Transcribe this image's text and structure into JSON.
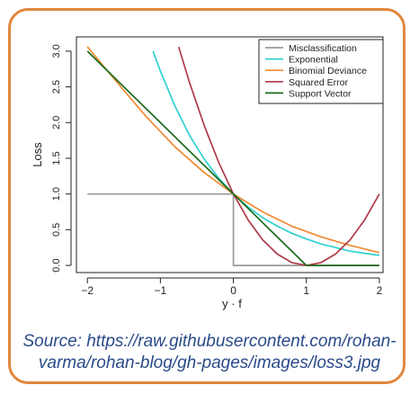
{
  "chart_data": {
    "type": "line",
    "xlabel": "y · f",
    "ylabel": "Loss",
    "xlim": [
      -2.15,
      2.05
    ],
    "ylim": [
      -0.1,
      3.2
    ],
    "xticks": [
      -2,
      -1,
      0,
      1,
      2
    ],
    "xtick_labels": [
      "−2",
      "−1",
      "0",
      "1",
      "2"
    ],
    "yticks": [
      0.0,
      0.5,
      1.0,
      1.5,
      2.0,
      2.5,
      3.0
    ],
    "ytick_labels": [
      "0.0",
      "0.5",
      "1.0",
      "1.5",
      "2.0",
      "2.5",
      "3.0"
    ],
    "grid": false,
    "legend_position": "top-right",
    "series": [
      {
        "name": "Misclassification",
        "color": "#999999",
        "x": [
          -2,
          0,
          0,
          0.001,
          2
        ],
        "y": [
          1,
          1,
          1,
          0,
          0
        ]
      },
      {
        "name": "Exponential",
        "color": "#30d0d0",
        "x": [
          -1.1,
          -1.0,
          -0.8,
          -0.6,
          -0.4,
          -0.2,
          0,
          0.2,
          0.4,
          0.6,
          0.8,
          1.0,
          1.2,
          1.4,
          1.6,
          1.8,
          2.0
        ],
        "y": [
          3.0,
          2.72,
          2.23,
          1.82,
          1.49,
          1.22,
          1.0,
          0.82,
          0.67,
          0.55,
          0.45,
          0.37,
          0.3,
          0.25,
          0.2,
          0.17,
          0.14
        ]
      },
      {
        "name": "Binomial Deviance",
        "color": "#f08a30",
        "x": [
          -2.0,
          -1.6,
          -1.2,
          -0.8,
          -0.4,
          0,
          0.4,
          0.8,
          1.2,
          1.6,
          2.0
        ],
        "y": [
          3.06,
          2.57,
          2.09,
          1.66,
          1.3,
          1.0,
          0.75,
          0.55,
          0.4,
          0.28,
          0.18
        ]
      },
      {
        "name": "Squared Error",
        "color": "#b03a48",
        "x": [
          -0.75,
          -0.6,
          -0.4,
          -0.2,
          0,
          0.2,
          0.4,
          0.6,
          0.8,
          1.0,
          1.2,
          1.4,
          1.6,
          1.8,
          2.0
        ],
        "y": [
          3.06,
          2.56,
          1.96,
          1.44,
          1.0,
          0.64,
          0.36,
          0.16,
          0.04,
          0.0,
          0.04,
          0.16,
          0.36,
          0.64,
          1.0
        ]
      },
      {
        "name": "Support Vector",
        "color": "#1a6a1a",
        "x": [
          -2.0,
          1.0,
          2.0
        ],
        "y": [
          3.0,
          0.0,
          0.0
        ]
      }
    ]
  },
  "caption": "Source: https://raw.githubusercontent.com/rohan-varma/rohan-blog/gh-pages/images/loss3.jpg"
}
